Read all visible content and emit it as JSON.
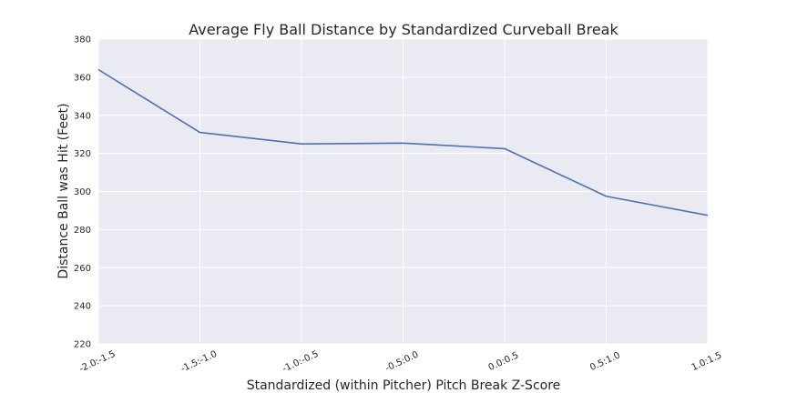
{
  "chart_data": {
    "type": "line",
    "title": "Average Fly Ball Distance by Standardized Curveball Break",
    "xlabel": "Standardized (within Pitcher) Pitch Break Z-Score",
    "ylabel": "Distance Ball was Hit (Feet)",
    "categories": [
      "-2.0:-1.5",
      "-1.5:-1.0",
      "-1.0:-0.5",
      "-0.5:0.0",
      "0.0:0.5",
      "0.5:1.0",
      "1.0:1.5"
    ],
    "values": [
      364,
      331,
      325,
      325.4,
      322.5,
      297.5,
      287.5
    ],
    "ylim": [
      220,
      380
    ],
    "yticks": [
      "220",
      "240",
      "260",
      "280",
      "300",
      "320",
      "340",
      "360",
      "380"
    ],
    "grid": true,
    "colors": {
      "line": "#4c72b0",
      "plot_background": "#eaeaf2",
      "grid": "#ffffff"
    }
  }
}
